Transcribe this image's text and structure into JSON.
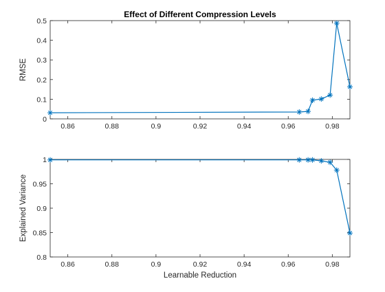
{
  "colors": {
    "series": "#0072BD",
    "axis": "#262626",
    "background": "#ffffff"
  },
  "chart_data": [
    {
      "type": "line",
      "title": "Effect of Different Compression Levels",
      "xlabel": "",
      "ylabel": "RMSE",
      "xlim": [
        0.852,
        0.988
      ],
      "ylim": [
        0,
        0.5
      ],
      "xticks": [
        0.86,
        0.88,
        0.9,
        0.92,
        0.94,
        0.96,
        0.98
      ],
      "xtick_labels": [
        "0.86",
        "0.88",
        "0.9",
        "0.92",
        "0.94",
        "0.96",
        "0.98"
      ],
      "yticks": [
        0,
        0.1,
        0.2,
        0.3,
        0.4,
        0.5
      ],
      "ytick_labels": [
        "0",
        "0.1",
        "0.2",
        "0.3",
        "0.4",
        "0.5"
      ],
      "marker": "asterisk",
      "grid": false,
      "series": [
        {
          "x": [
            0.852,
            0.965,
            0.969,
            0.971,
            0.975,
            0.979,
            0.982,
            0.988
          ],
          "y": [
            0.031,
            0.035,
            0.038,
            0.095,
            0.101,
            0.121,
            0.487,
            0.163
          ]
        }
      ]
    },
    {
      "type": "line",
      "title": "",
      "xlabel": "Learnable Reduction",
      "ylabel": "Explained Variance",
      "xlim": [
        0.852,
        0.988
      ],
      "ylim": [
        0.8,
        1
      ],
      "xticks": [
        0.86,
        0.88,
        0.9,
        0.92,
        0.94,
        0.96,
        0.98
      ],
      "xtick_labels": [
        "0.86",
        "0.88",
        "0.9",
        "0.92",
        "0.94",
        "0.96",
        "0.98"
      ],
      "yticks": [
        0.8,
        0.85,
        0.9,
        0.95,
        1
      ],
      "ytick_labels": [
        "0.8",
        "0.85",
        "0.9",
        "0.95",
        "1"
      ],
      "marker": "asterisk",
      "grid": false,
      "series": [
        {
          "x": [
            0.852,
            0.965,
            0.969,
            0.971,
            0.975,
            0.979,
            0.982,
            0.988
          ],
          "y": [
            0.999,
            0.999,
            0.999,
            0.999,
            0.997,
            0.994,
            0.978,
            0.849
          ]
        }
      ]
    }
  ]
}
